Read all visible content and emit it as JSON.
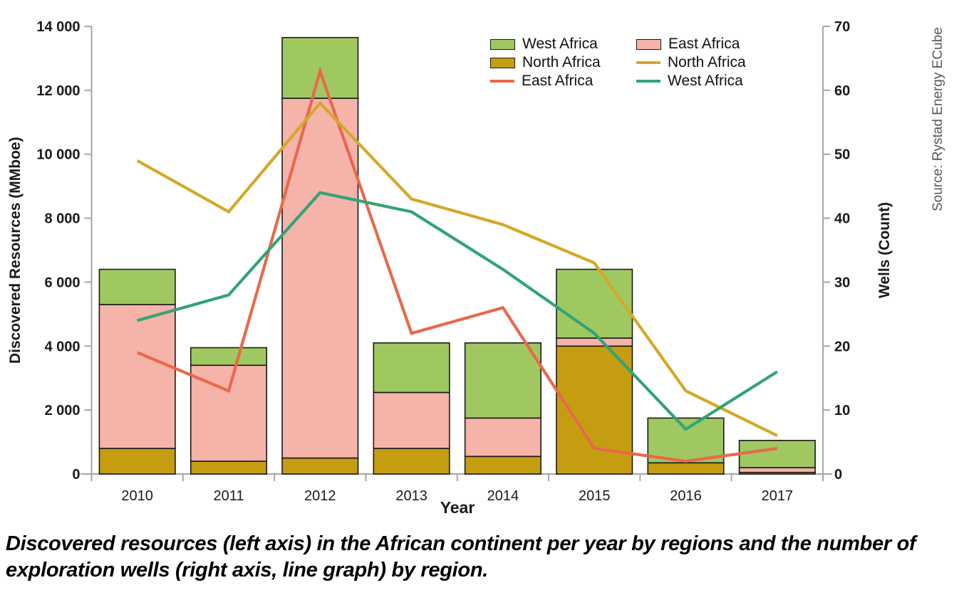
{
  "source": {
    "text": "Source: Rystad Energy ECube"
  },
  "caption": {
    "text": "Discovered resources (left axis) in the African continent per year by regions and the number of exploration wells (right axis, line graph) by region."
  },
  "colors": {
    "west_africa_bar": "#a0c861",
    "north_africa_bar": "#c59d10",
    "east_africa_bar": "#f5b3a9",
    "east_africa_line": "#e8694a",
    "north_africa_line": "#d4a826",
    "west_africa_line": "#32a376",
    "bar_outline": "#1a1a1a",
    "axis": "#a6a6a6",
    "source_text": "#595959"
  },
  "chart_data": {
    "type": "bar+line",
    "title": "",
    "xlabel": "Year",
    "x": [
      "2010",
      "2011",
      "2012",
      "2013",
      "2014",
      "2015",
      "2016",
      "2017"
    ],
    "grid": false,
    "legend_position": "top-right inside plot, two columns",
    "left_axis": {
      "label": "Discovered Resources (MMboe)",
      "range": [
        0,
        14000
      ],
      "ticks": [
        {
          "value": 0,
          "label": "0"
        },
        {
          "value": 2000,
          "label": "2 000"
        },
        {
          "value": 4000,
          "label": "4 000"
        },
        {
          "value": 6000,
          "label": "6 000"
        },
        {
          "value": 8000,
          "label": "8 000"
        },
        {
          "value": 10000,
          "label": "10 000"
        },
        {
          "value": 12000,
          "label": "12 000"
        },
        {
          "value": 14000,
          "label": "14 000"
        }
      ]
    },
    "right_axis": {
      "label": "Wells (Count)",
      "range": [
        0,
        70
      ],
      "ticks": [
        {
          "value": 0,
          "label": "0"
        },
        {
          "value": 10,
          "label": "10"
        },
        {
          "value": 20,
          "label": "20"
        },
        {
          "value": 30,
          "label": "30"
        },
        {
          "value": 40,
          "label": "40"
        },
        {
          "value": 50,
          "label": "50"
        },
        {
          "value": 60,
          "label": "60"
        },
        {
          "value": 70,
          "label": "70"
        }
      ]
    },
    "bar_series": [
      {
        "name": "North Africa",
        "axis": "left",
        "stack_order": "bottom",
        "color": "#c59d10",
        "values": [
          800,
          400,
          500,
          800,
          550,
          4000,
          350,
          50
        ]
      },
      {
        "name": "East Africa",
        "axis": "left",
        "stack_order": "middle",
        "color": "#f5b3a9",
        "values": [
          4500,
          3000,
          11250,
          1750,
          1200,
          250,
          0,
          150
        ]
      },
      {
        "name": "West Africa",
        "axis": "left",
        "stack_order": "top",
        "color": "#a0c861",
        "values": [
          1100,
          550,
          1900,
          1550,
          2350,
          2150,
          1400,
          850
        ]
      }
    ],
    "bar_totals": [
      6400,
      3950,
      13650,
      4100,
      4100,
      6400,
      1750,
      1050
    ],
    "line_series": [
      {
        "name": "East Africa",
        "axis": "right",
        "color": "#e8694a",
        "values": [
          19,
          13,
          63,
          22,
          26,
          4,
          2,
          4
        ]
      },
      {
        "name": "North Africa",
        "axis": "right",
        "color": "#d4a826",
        "values": [
          49,
          41,
          58,
          43,
          39,
          33,
          13,
          6
        ]
      },
      {
        "name": "West Africa",
        "axis": "right",
        "color": "#32a376",
        "values": [
          24,
          28,
          44,
          41,
          32,
          22,
          7,
          16
        ]
      }
    ]
  }
}
